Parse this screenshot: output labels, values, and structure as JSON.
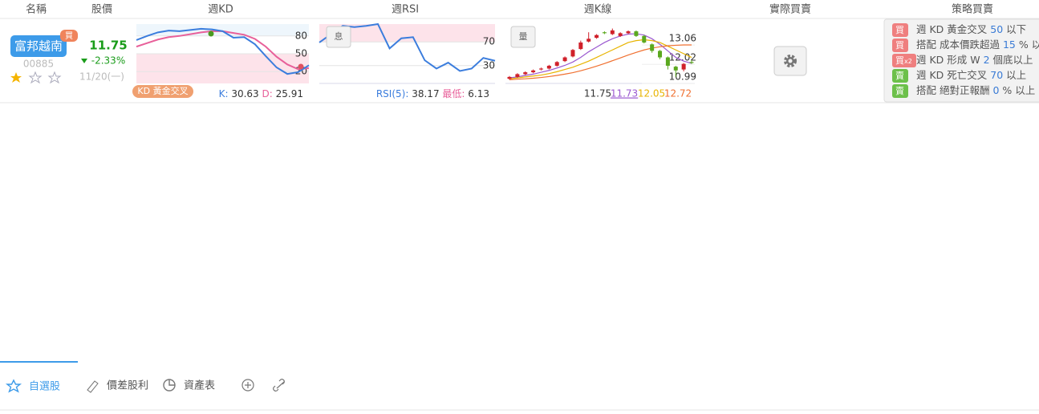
{
  "header": {
    "columns": [
      "名稱",
      "股價",
      "週KD",
      "週RSI",
      "週K線",
      "實際買賣",
      "策略買賣"
    ]
  },
  "stock": {
    "name": "富邦越南",
    "badge": "買",
    "code": "00885",
    "price": "11.75",
    "change": "-2.33%",
    "date": "11/20(一)"
  },
  "kd": {
    "ylim": [
      0,
      100
    ],
    "yticks": [
      80,
      50,
      20
    ],
    "k": {
      "color": "#3b7ddd",
      "values": [
        73,
        80,
        86,
        89,
        88,
        90,
        92,
        91,
        88,
        77,
        78,
        66,
        46,
        27,
        16,
        19,
        30.63
      ]
    },
    "d": {
      "color": "#e8609a",
      "values": [
        62,
        68,
        74,
        78,
        80,
        83,
        86,
        88,
        88,
        85,
        82,
        75,
        62,
        45,
        32,
        24,
        25.91
      ]
    },
    "signal": "KD 黃金交叉",
    "k_label": "K:",
    "k_value": "30.63",
    "d_label": "D:",
    "d_value": "25.91"
  },
  "rsi": {
    "ylim": [
      0,
      100
    ],
    "yticks": [
      70,
      30
    ],
    "button": "息",
    "color": "#3b7ddd",
    "values": [
      69,
      83,
      97,
      95,
      97,
      100,
      59,
      76,
      78,
      39,
      25,
      35,
      21,
      25,
      43,
      38.17
    ],
    "label": "RSI(5):",
    "value": "38.17",
    "low_label": "最低:",
    "low_value": "6.13"
  },
  "kline": {
    "ylim": [
      10.65,
      13.84
    ],
    "yticks": [
      13.06,
      12.02,
      10.99
    ],
    "button": "量",
    "up_color": "#d0202a",
    "down_color": "#5aa81e",
    "open": [
      10.9,
      11.0,
      11.15,
      11.25,
      11.4,
      11.45,
      11.6,
      11.85,
      12.1,
      12.5,
      12.9,
      13.1,
      13.4,
      13.3,
      13.2,
      13.35,
      13.45,
      13.2,
      12.75,
      12.4,
      12.05,
      11.55,
      11.4,
      11.8
    ],
    "close": [
      11.0,
      11.15,
      11.25,
      11.35,
      11.45,
      11.6,
      11.8,
      12.05,
      12.45,
      12.85,
      13.05,
      13.25,
      13.35,
      13.5,
      13.35,
      13.45,
      13.2,
      12.85,
      12.4,
      12.05,
      11.6,
      11.35,
      11.7,
      11.75
    ],
    "high": [
      11.05,
      11.2,
      11.3,
      11.4,
      11.5,
      11.65,
      11.85,
      12.1,
      12.5,
      12.95,
      13.4,
      13.3,
      13.45,
      13.6,
      13.4,
      13.5,
      13.5,
      13.25,
      12.8,
      12.45,
      12.1,
      11.6,
      11.75,
      11.9
    ],
    "low": [
      10.85,
      10.95,
      11.1,
      11.2,
      11.35,
      11.4,
      11.55,
      11.8,
      12.05,
      12.45,
      12.85,
      13.05,
      13.3,
      13.25,
      13.15,
      13.3,
      13.15,
      12.8,
      12.3,
      11.95,
      11.4,
      11.0,
      11.3,
      11.7
    ],
    "ma": [
      {
        "color": "#9b59d0",
        "values": [
          10.95,
          11.0,
          11.08,
          11.15,
          11.25,
          11.35,
          11.48,
          11.62,
          11.8,
          12.05,
          12.35,
          12.6,
          12.85,
          13.05,
          13.2,
          13.3,
          13.32,
          13.25,
          13.05,
          12.75,
          12.4,
          12.05,
          11.85,
          11.73
        ]
      },
      {
        "color": "#e8b400",
        "values": [
          10.9,
          10.95,
          11.0,
          11.05,
          11.1,
          11.18,
          11.28,
          11.4,
          11.52,
          11.68,
          11.85,
          12.05,
          12.25,
          12.45,
          12.65,
          12.85,
          12.95,
          13.0,
          12.95,
          12.85,
          12.65,
          12.45,
          12.25,
          12.05
        ]
      },
      {
        "color": "#f07030",
        "values": [
          10.85,
          10.88,
          10.9,
          10.93,
          10.97,
          11.02,
          11.08,
          11.15,
          11.23,
          11.33,
          11.45,
          11.58,
          11.72,
          11.87,
          12.02,
          12.18,
          12.32,
          12.45,
          12.55,
          12.62,
          12.67,
          12.7,
          12.72,
          12.72
        ]
      }
    ],
    "footer": [
      "11.75",
      "11.73",
      "12.05",
      "12.72"
    ]
  },
  "strategy": [
    {
      "badge": "買",
      "text": "週 KD 黃金交叉",
      "number": "50",
      "suffix": "以下"
    },
    {
      "badge": "買",
      "text": "搭配 成本價跌超過",
      "number": "15",
      "suffix": "% 以上"
    },
    {
      "badge": "買",
      "badge_note": "x2",
      "text": "週 KD 形成 W",
      "number": "2",
      "suffix": "個底以上"
    },
    {
      "badge": "賣",
      "text": "週 KD 死亡交叉",
      "number": "70",
      "suffix": "以上"
    },
    {
      "badge": "賣",
      "text": "搭配 絕對正報酬",
      "number": "0",
      "suffix": "% 以上"
    }
  ],
  "tabs": [
    "自選股",
    "價差股利",
    "資產表"
  ]
}
